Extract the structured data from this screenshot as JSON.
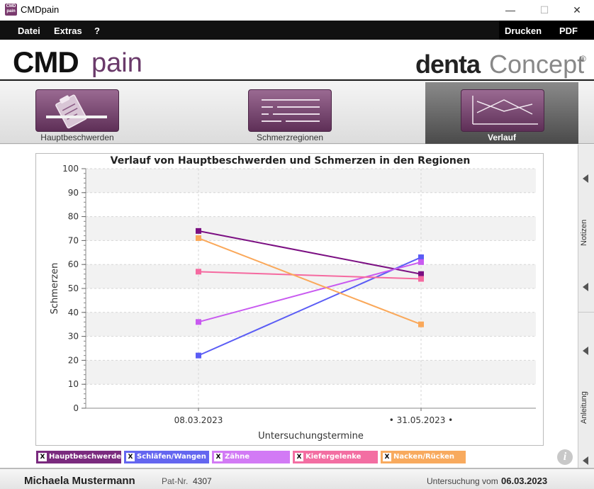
{
  "window": {
    "title": "CMDpain",
    "minimize": "—",
    "maximize": "☐",
    "close": "✕",
    "icon_text": "CMD pain"
  },
  "menu": {
    "items": [
      "Datei",
      "Extras",
      "?"
    ],
    "right": [
      "Drucken",
      "PDF"
    ]
  },
  "logo": {
    "cmd": "CMD",
    "pain": "pain",
    "denta": "denta",
    "concept": "Concept",
    "registered": "®"
  },
  "tabs": [
    {
      "label": "Hauptbeschwerden",
      "icon": "clipboard-icon",
      "active": false
    },
    {
      "label": "Schmerzregionen",
      "icon": "lines-icon",
      "active": false
    },
    {
      "label": "Verlauf",
      "icon": "line-chart-icon",
      "active": true
    }
  ],
  "chart_data": {
    "type": "line",
    "title": "Verlauf von Hauptbeschwerden und Schmerzen in den Regionen",
    "xlabel": "Untersuchungstermine",
    "ylabel": "Schmerzen",
    "categories": [
      "08.03.2023",
      "• 31.05.2023 •"
    ],
    "ylim": [
      0,
      100
    ],
    "yticks": [
      0,
      10,
      20,
      30,
      40,
      50,
      60,
      70,
      80,
      90,
      100
    ],
    "grid": true,
    "series": [
      {
        "name": "Hauptbeschwerde",
        "values": [
          74,
          56
        ],
        "color": "#7b0f82"
      },
      {
        "name": "Schläfen/Wangen",
        "values": [
          22,
          63
        ],
        "color": "#5a5cf5"
      },
      {
        "name": "Zähne",
        "values": [
          36,
          61
        ],
        "color": "#c85af0"
      },
      {
        "name": "Kiefergelenke",
        "values": [
          57,
          54
        ],
        "color": "#f56aa0"
      },
      {
        "name": "Nacken/Rücken",
        "values": [
          71,
          35
        ],
        "color": "#faa85a"
      }
    ]
  },
  "legend": {
    "items": [
      {
        "label": "Hauptbeschwerde",
        "color": "#7a2a7e",
        "check": "X"
      },
      {
        "label": "Schläfen/Wangen",
        "color": "#6466f0",
        "check": "X"
      },
      {
        "label": "Zähne",
        "color": "#d27af5",
        "check": "X"
      },
      {
        "label": "Kiefergelenke",
        "color": "#f36ea2",
        "check": "X"
      },
      {
        "label": "Nacken/Rücken",
        "color": "#f8aa5e",
        "check": "X"
      }
    ]
  },
  "info": "i",
  "side": {
    "notes": "Notizen",
    "guide": "Anleitung"
  },
  "status": {
    "patient_name": "Michaela Mustermann",
    "patnr_label": "Pat-Nr.",
    "patnr_value": "4307",
    "exam_label": "Untersuchung vom",
    "exam_date": "06.03.2023"
  }
}
